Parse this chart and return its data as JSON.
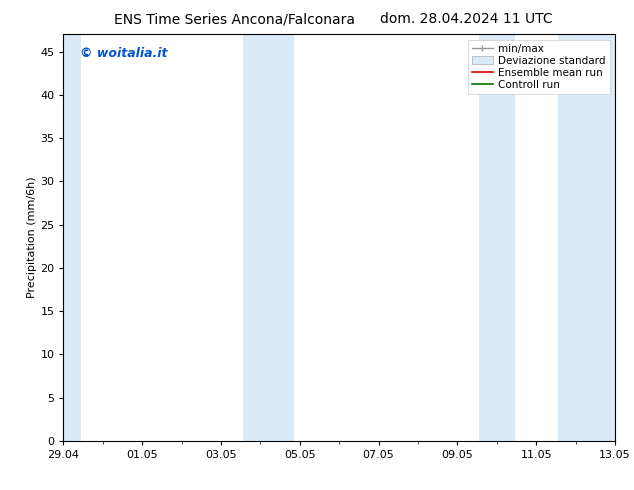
{
  "title_left": "ENS Time Series Ancona/Falconara",
  "title_right": "dom. 28.04.2024 11 UTC",
  "ylabel": "Precipitation (mm/6h)",
  "watermark": "© woitalia.it",
  "bg_color": "#ffffff",
  "plot_bg_color": "#ffffff",
  "shade_color": "#daeaf6",
  "ylim": [
    0,
    47
  ],
  "yticks": [
    0,
    5,
    10,
    15,
    20,
    25,
    30,
    35,
    40,
    45
  ],
  "xtick_labels": [
    "29.04",
    "01.05",
    "03.05",
    "05.05",
    "07.05",
    "09.05",
    "11.05",
    "13.05"
  ],
  "x_start": 0,
  "x_end": 14,
  "shaded_regions": [
    [
      0.0,
      0.45
    ],
    [
      4.55,
      5.85
    ],
    [
      10.55,
      11.45
    ],
    [
      12.55,
      14.0
    ]
  ],
  "xtick_positions": [
    0,
    2,
    4,
    6,
    8,
    10,
    12,
    14
  ],
  "legend_labels": [
    "min/max",
    "Deviazione standard",
    "Ensemble mean run",
    "Controll run"
  ],
  "title_fontsize": 10,
  "tick_fontsize": 8,
  "ylabel_fontsize": 8,
  "watermark_color": "#0055cc",
  "watermark_fontsize": 9,
  "legend_fontsize": 7.5
}
